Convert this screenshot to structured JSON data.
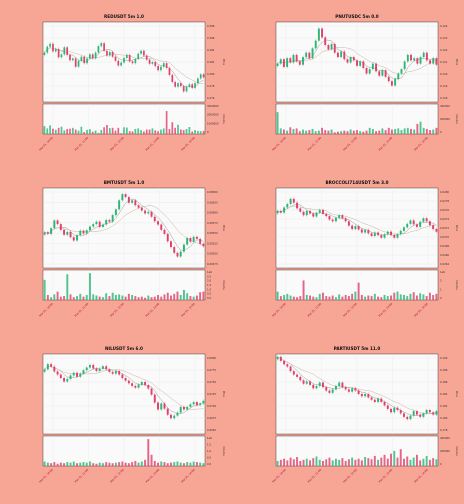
{
  "colors": {
    "background": "#f7a595",
    "plot_bg": "#fafafa",
    "up": "#2bb673",
    "down": "#e0406a",
    "ma_fast": "#9a9a9a",
    "ma_slow": "#c8b4a0",
    "xtick": "#aa1144"
  },
  "chart_data": [
    {
      "type": "candlestick",
      "title": "REDUSDT 5m 1.0",
      "ylabel": "Price",
      "vlabel": "Volume",
      "yticks": [
        "0.288",
        "0.286",
        "0.284",
        "0.282",
        "0.280",
        "0.278",
        "0.276"
      ],
      "vticks": [
        "3000000",
        "2000000",
        "1000000",
        "0"
      ],
      "xticks": [
        "Mar 01, 10:00",
        "Mar 01, 11:00",
        "Mar 01, 12:00",
        "Mar 01, 13:00",
        "Mar 01, 14:00"
      ],
      "ylim": [
        0.2752,
        0.2888
      ],
      "closes": [
        0.2836,
        0.2846,
        0.2851,
        0.2838,
        0.2842,
        0.2828,
        0.2833,
        0.2845,
        0.2832,
        0.2823,
        0.2826,
        0.2812,
        0.2822,
        0.2829,
        0.2818,
        0.2826,
        0.2833,
        0.2826,
        0.2836,
        0.2847,
        0.2852,
        0.2839,
        0.2831,
        0.2837,
        0.2829,
        0.2822,
        0.2814,
        0.2819,
        0.2827,
        0.2832,
        0.2821,
        0.2818,
        0.2825,
        0.2834,
        0.2839,
        0.2831,
        0.2824,
        0.2817,
        0.282,
        0.2813,
        0.2806,
        0.2812,
        0.2818,
        0.281,
        0.2798,
        0.2786,
        0.2778,
        0.2784,
        0.2779,
        0.277,
        0.2778,
        0.2782,
        0.2776,
        0.2784,
        0.2792,
        0.2799,
        0.2794
      ],
      "volumes": [
        0.28,
        0.2,
        0.31,
        0.19,
        0.15,
        0.22,
        0.26,
        0.13,
        0.18,
        0.19,
        0.22,
        0.16,
        0.12,
        0.26,
        0.07,
        0.15,
        0.17,
        0.08,
        0.12,
        0.04,
        0.14,
        0.24,
        0.32,
        0.21,
        0.22,
        0.12,
        0.22,
        0.03,
        0.24,
        0.23,
        0.1,
        0.09,
        0.18,
        0.2,
        0.14,
        0.09,
        0.16,
        0.16,
        0.2,
        0.13,
        0.1,
        0.16,
        0.2,
        0.82,
        0.18,
        0.42,
        0.22,
        0.33,
        0.16,
        0.14,
        0.18,
        0.25,
        0.09,
        0.14,
        0.11,
        0.1,
        0.11
      ]
    },
    {
      "type": "candlestick",
      "title": "PNUTUSDC 5m 0.0",
      "ylabel": "Price",
      "vlabel": "Volume",
      "yticks": [
        "0.124",
        "0.123",
        "0.122",
        "0.121",
        "0.120",
        "0.119",
        "0.118"
      ],
      "vticks": [
        "400000",
        "200000",
        "0"
      ],
      "xticks": [
        "Mar 01, 10:00",
        "Mar 01, 11:00",
        "Mar 01, 12:00",
        "Mar 01, 13:00",
        "Mar 01, 14:00"
      ],
      "ylim": [
        0.1173,
        0.1246
      ],
      "closes": [
        0.1208,
        0.1212,
        0.1205,
        0.1213,
        0.1209,
        0.1216,
        0.121,
        0.1207,
        0.1214,
        0.1218,
        0.1213,
        0.1222,
        0.1229,
        0.124,
        0.1232,
        0.1225,
        0.1221,
        0.1226,
        0.1218,
        0.1214,
        0.1219,
        0.1212,
        0.1209,
        0.1214,
        0.1211,
        0.1206,
        0.121,
        0.1204,
        0.1199,
        0.1203,
        0.1208,
        0.1201,
        0.1197,
        0.1202,
        0.1196,
        0.1192,
        0.1188,
        0.1194,
        0.1199,
        0.1203,
        0.121,
        0.1216,
        0.1211,
        0.1213,
        0.1208,
        0.1214,
        0.1218,
        0.1211,
        0.1208,
        0.1213,
        0.1207
      ],
      "volumes": [
        0.78,
        0.2,
        0.16,
        0.12,
        0.24,
        0.18,
        0.2,
        0.1,
        0.16,
        0.12,
        0.14,
        0.18,
        0.1,
        0.12,
        0.22,
        0.14,
        0.12,
        0.16,
        0.06,
        0.08,
        0.1,
        0.12,
        0.1,
        0.16,
        0.12,
        0.14,
        0.1,
        0.08,
        0.12,
        0.22,
        0.18,
        0.1,
        0.12,
        0.2,
        0.14,
        0.22,
        0.16,
        0.18,
        0.2,
        0.14,
        0.2,
        0.22,
        0.18,
        0.16,
        0.36,
        0.44,
        0.22,
        0.18,
        0.14,
        0.16,
        0.22
      ]
    },
    {
      "type": "candlestick",
      "title": "BMTUSDT 5m 1.0",
      "ylabel": "Price",
      "vlabel": "Volume",
      "yticks": [
        "0.08650",
        "0.08625",
        "0.08600",
        "0.08575",
        "0.08550",
        "0.08525",
        "0.08500",
        "0.08475"
      ],
      "vticks": [
        "1e6",
        "2.5",
        "2.0",
        "1.5",
        "1.0",
        "0.5",
        "0.0"
      ],
      "xticks": [
        "Mar 01, 10:00",
        "Mar 01, 11:00",
        "Mar 01, 12:00",
        "Mar 01, 13:00",
        "Mar 01, 14:00"
      ],
      "ylim": [
        0.08465,
        0.0866
      ],
      "closes": [
        0.08552,
        0.08548,
        0.08562,
        0.08581,
        0.08572,
        0.08558,
        0.08546,
        0.08553,
        0.0854,
        0.08532,
        0.08545,
        0.08556,
        0.08549,
        0.08557,
        0.08566,
        0.08572,
        0.08578,
        0.08565,
        0.08571,
        0.08582,
        0.08578,
        0.08594,
        0.08608,
        0.0863,
        0.08645,
        0.08638,
        0.08624,
        0.0863,
        0.08618,
        0.08612,
        0.08605,
        0.08598,
        0.08602,
        0.0859,
        0.08579,
        0.08571,
        0.08558,
        0.08548,
        0.0853,
        0.08516,
        0.08502,
        0.08493,
        0.08505,
        0.08522,
        0.08538,
        0.08529,
        0.08541,
        0.08536,
        0.08524,
        0.08518
      ],
      "volumes": [
        0.72,
        0.18,
        0.1,
        0.2,
        0.3,
        0.12,
        0.14,
        0.92,
        0.2,
        0.1,
        0.14,
        0.22,
        0.12,
        0.18,
        0.96,
        0.2,
        0.16,
        0.12,
        0.1,
        0.24,
        0.14,
        0.26,
        0.18,
        0.2,
        0.16,
        0.12,
        0.22,
        0.18,
        0.14,
        0.1,
        0.12,
        0.08,
        0.16,
        0.1,
        0.12,
        0.18,
        0.12,
        0.2,
        0.26,
        0.16,
        0.22,
        0.3,
        0.18,
        0.36,
        0.24,
        0.14,
        0.12,
        0.16,
        0.28,
        0.3
      ]
    },
    {
      "type": "candlestick",
      "title": "BROCCOLI714USDT 5m 3.0",
      "ylabel": "Price",
      "vlabel": "Volume",
      "yticks": [
        "0.0280",
        "0.0278",
        "0.0276",
        "0.0274",
        "0.0272",
        "0.0270",
        "0.0268",
        "0.0266",
        "0.0264"
      ],
      "vticks": [
        "1e6",
        "2",
        "1",
        "0"
      ],
      "xticks": [
        "Mar 01, 10:00",
        "Mar 01, 11:00",
        "Mar 01, 12:00",
        "Mar 01, 13:00",
        "Mar 01, 14:00"
      ],
      "ylim": [
        0.0263,
        0.02815
      ],
      "closes": [
        0.02762,
        0.02758,
        0.0277,
        0.02778,
        0.0279,
        0.02781,
        0.02768,
        0.0276,
        0.02752,
        0.02762,
        0.02756,
        0.02749,
        0.02758,
        0.02764,
        0.02755,
        0.0275,
        0.02742,
        0.02738,
        0.02746,
        0.02752,
        0.02745,
        0.02738,
        0.02728,
        0.0272,
        0.02727,
        0.02719,
        0.02712,
        0.02718,
        0.0271,
        0.02704,
        0.02712,
        0.02706,
        0.027,
        0.02708,
        0.02714,
        0.02706,
        0.027,
        0.02708,
        0.02716,
        0.02724,
        0.02732,
        0.0274,
        0.02731,
        0.02725,
        0.02737,
        0.02745,
        0.02738,
        0.02729,
        0.0272,
        0.02714
      ],
      "volumes": [
        0.3,
        0.14,
        0.18,
        0.22,
        0.16,
        0.12,
        0.1,
        0.14,
        0.7,
        0.18,
        0.16,
        0.12,
        0.1,
        0.22,
        0.26,
        0.14,
        0.12,
        0.16,
        0.1,
        0.2,
        0.12,
        0.18,
        0.14,
        0.22,
        0.3,
        0.62,
        0.18,
        0.12,
        0.16,
        0.14,
        0.22,
        0.12,
        0.1,
        0.18,
        0.14,
        0.16,
        0.26,
        0.3,
        0.2,
        0.18,
        0.14,
        0.22,
        0.28,
        0.16,
        0.24,
        0.2,
        0.14,
        0.26,
        0.18,
        0.22
      ]
    },
    {
      "type": "candlestick",
      "title": "NILUSDT 5m 6.0",
      "ylabel": "Price",
      "vlabel": "Volume",
      "yticks": [
        "0.6800",
        "0.6775",
        "0.6750",
        "0.6725",
        "0.6700",
        "0.6675",
        "0.6650"
      ],
      "vticks": [
        "1e6",
        "1.5",
        "1.0",
        "0.5",
        "0.0"
      ],
      "xticks": [
        "Mar 01, 10:00",
        "Mar 01, 11:00",
        "Mar 01, 12:00",
        "Mar 01, 13:00",
        "Mar 01, 14:00"
      ],
      "ylim": [
        0.6632,
        0.6815
      ],
      "closes": [
        0.678,
        0.6792,
        0.6786,
        0.6775,
        0.6768,
        0.676,
        0.6752,
        0.6758,
        0.6766,
        0.6772,
        0.6763,
        0.677,
        0.6778,
        0.6784,
        0.679,
        0.6782,
        0.6776,
        0.6781,
        0.6787,
        0.678,
        0.6774,
        0.677,
        0.6776,
        0.6768,
        0.676,
        0.6754,
        0.6748,
        0.6742,
        0.6738,
        0.6745,
        0.6751,
        0.6744,
        0.6736,
        0.6722,
        0.6704,
        0.6688,
        0.6702,
        0.669,
        0.6676,
        0.6668,
        0.6674,
        0.6681,
        0.6694,
        0.6688,
        0.6694,
        0.67,
        0.6705,
        0.6698,
        0.6702,
        0.6708
      ],
      "volumes": [
        0.16,
        0.12,
        0.1,
        0.14,
        0.08,
        0.12,
        0.1,
        0.14,
        0.12,
        0.16,
        0.1,
        0.12,
        0.14,
        0.12,
        0.16,
        0.1,
        0.08,
        0.12,
        0.1,
        0.14,
        0.12,
        0.1,
        0.12,
        0.14,
        0.16,
        0.12,
        0.1,
        0.14,
        0.18,
        0.12,
        0.16,
        0.22,
        0.96,
        0.4,
        0.18,
        0.12,
        0.16,
        0.14,
        0.1,
        0.12,
        0.14,
        0.16,
        0.12,
        0.1,
        0.14,
        0.12,
        0.16,
        0.14,
        0.12,
        0.1
      ]
    },
    {
      "type": "candlestick",
      "title": "PARTIUSDT 5m 11.0",
      "ylabel": "Price",
      "vlabel": "Volume",
      "yticks": [
        "0.190",
        "0.188",
        "0.186",
        "0.184",
        "0.182",
        "0.180",
        "0.178"
      ],
      "vticks": [
        "400000",
        "200000",
        "0"
      ],
      "xticks": [
        "Mar 01, 10:00",
        "Mar 01, 11:00",
        "Mar 01, 12:00",
        "Mar 01, 13:00",
        "Mar 01, 14:00"
      ],
      "ylim": [
        0.177,
        0.191
      ],
      "closes": [
        0.1905,
        0.1898,
        0.1892,
        0.1888,
        0.188,
        0.1874,
        0.187,
        0.1864,
        0.1858,
        0.1862,
        0.1856,
        0.185,
        0.1854,
        0.186,
        0.1852,
        0.1846,
        0.1842,
        0.1848,
        0.1854,
        0.186,
        0.1852,
        0.1848,
        0.1844,
        0.185,
        0.1846,
        0.184,
        0.1836,
        0.184,
        0.1834,
        0.183,
        0.1826,
        0.1832,
        0.1826,
        0.182,
        0.1814,
        0.1808,
        0.1816,
        0.1812,
        0.1806,
        0.18,
        0.1796,
        0.1802,
        0.181,
        0.1804,
        0.18,
        0.1806,
        0.1812,
        0.1808,
        0.1804,
        0.181
      ],
      "volumes": [
        0.18,
        0.22,
        0.26,
        0.2,
        0.3,
        0.24,
        0.32,
        0.18,
        0.22,
        0.26,
        0.2,
        0.28,
        0.34,
        0.22,
        0.18,
        0.24,
        0.3,
        0.2,
        0.26,
        0.22,
        0.28,
        0.18,
        0.24,
        0.3,
        0.22,
        0.26,
        0.2,
        0.32,
        0.28,
        0.24,
        0.36,
        0.22,
        0.3,
        0.4,
        0.26,
        0.44,
        0.54,
        0.3,
        0.6,
        0.26,
        0.34,
        0.22,
        0.3,
        0.4,
        0.2,
        0.26,
        0.36,
        0.22,
        0.28,
        0.24
      ]
    }
  ]
}
